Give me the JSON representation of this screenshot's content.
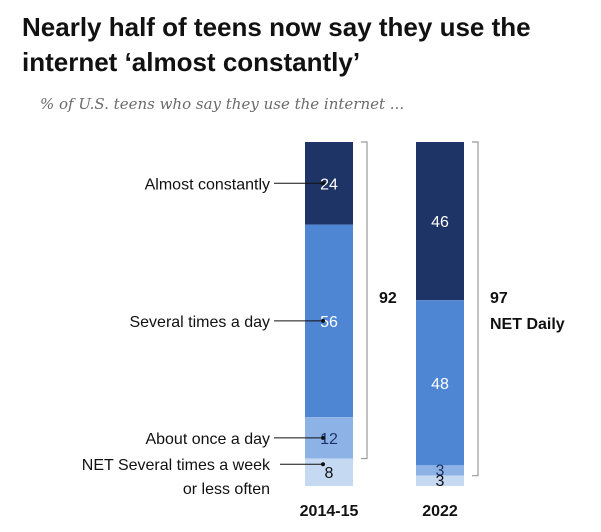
{
  "header": {
    "title": "Nearly half of teens now say they use the internet ‘almost constantly’",
    "subtitle": "% of U.S. teens who say they use the internet ..."
  },
  "colors": {
    "almost_constantly": "#1f3466",
    "several_times_a_day": "#4f86d4",
    "about_once_a_day": "#8db3e6",
    "net_weekly_or_less": "#c6d9f2",
    "bracket": "#9a9a9a",
    "connector": "#111111"
  },
  "chart_data": {
    "type": "bar",
    "stacked": true,
    "orientation": "vertical",
    "title": "Nearly half of teens now say they use the internet ‘almost constantly’",
    "subtitle": "% of U.S. teens who say they use the internet ...",
    "categories": [
      "2014-15",
      "2022"
    ],
    "series": [
      {
        "name": "Almost constantly",
        "values": [
          24,
          46
        ]
      },
      {
        "name": "Several times a day",
        "values": [
          56,
          48
        ]
      },
      {
        "name": "About once a day",
        "values": [
          12,
          3
        ]
      },
      {
        "name": [
          "NET Several times a week",
          "or less often"
        ],
        "values": [
          8,
          3
        ]
      }
    ],
    "net_daily": {
      "label": "NET Daily",
      "values": [
        92,
        97
      ]
    },
    "ylim": [
      0,
      100
    ]
  }
}
